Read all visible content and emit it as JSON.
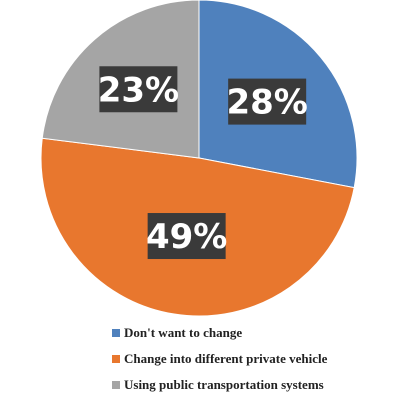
{
  "chart_data": {
    "type": "pie",
    "categories": [
      "Don't want to change",
      "Change into different private vehicle",
      "Using public transportation systems"
    ],
    "values": [
      28,
      49,
      23
    ],
    "data_labels": [
      "28%",
      "49%",
      "23%"
    ],
    "colors": [
      "#4f81bd",
      "#e8772e",
      "#a5a5a5"
    ],
    "start_angle": "12 o'clock",
    "direction": "clockwise",
    "legend": "bottom",
    "title": ""
  }
}
